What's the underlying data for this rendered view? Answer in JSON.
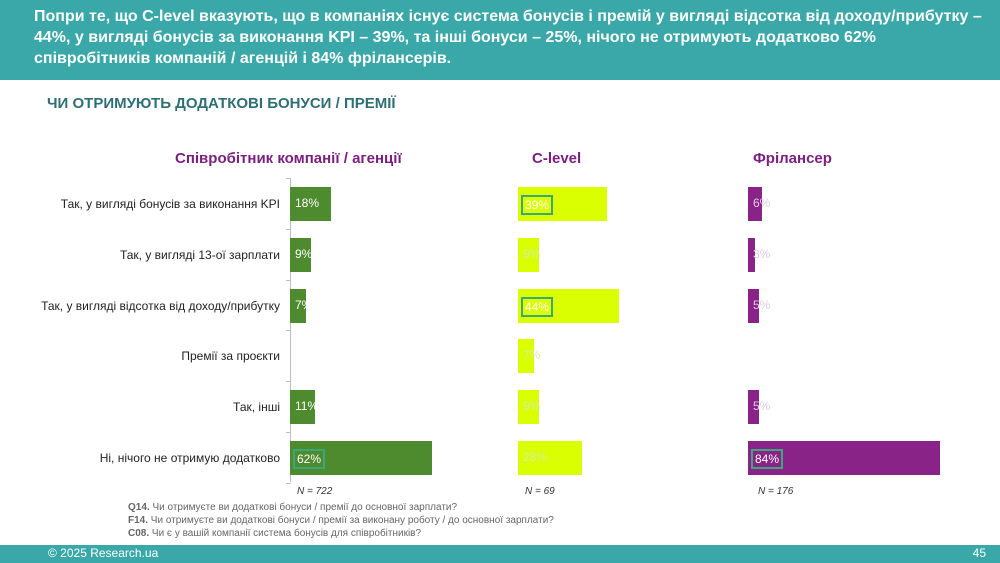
{
  "header": {
    "text": "Попри те, що C-level вказують, що в компаніях існує система бонусів і премій у вигляді відсотка від доходу/прибутку – 44%, у вигляді бонусів за виконання KPI – 39%, та інші бонуси – 25%, нічого не отримують додатково 62% співробітників компаній / агенцій і 84% фрілансерів."
  },
  "section_title": "ЧИ ОТРИМУЮТЬ ДОДАТКОВІ БОНУСИ / ПРЕМІЇ",
  "chart_data": {
    "type": "bar",
    "orientation": "horizontal",
    "categories": [
      "Так, у вигляді бонусів за виконання KPI",
      "Так, у вигляді 13-ої зарплати",
      "Так, у вигляді відсотка від доходу/прибутку",
      "Премії за проєкти",
      "Так, інші",
      "Ні, нічого не отримую додатково"
    ],
    "series": [
      {
        "name": "Співробітник компанії / агенції",
        "values": [
          18,
          9,
          7,
          null,
          11,
          62
        ],
        "labels": [
          "18%",
          "9%",
          "7%",
          "",
          "11%",
          "62%"
        ],
        "highlight": [
          false,
          false,
          false,
          false,
          false,
          true
        ],
        "n": "N = 722",
        "color": "#4e8a2e"
      },
      {
        "name": "C-level",
        "values": [
          39,
          9,
          44,
          7,
          9,
          28
        ],
        "labels": [
          "39%",
          "9%",
          "44%",
          "7%",
          "9%",
          "28%"
        ],
        "highlight": [
          true,
          false,
          true,
          false,
          false,
          false
        ],
        "n": "N = 69",
        "color": "#d9ff00"
      },
      {
        "name": "Фрілансер",
        "values": [
          6,
          3,
          5,
          null,
          5,
          84
        ],
        "labels": [
          "6%",
          "3%",
          "5%",
          "",
          "5%",
          "84%"
        ],
        "highlight": [
          false,
          false,
          false,
          false,
          false,
          true
        ],
        "n": "N =  176",
        "color": "#8a2387"
      }
    ],
    "xlim": [
      0,
      100
    ],
    "unit": "%"
  },
  "notes": [
    {
      "code": "Q14.",
      "text": " Чи отримуєте ви додаткові бонуси / премії до основної зарплати?"
    },
    {
      "code": "F14.",
      "text": " Чи отримуєте ви додаткові бонуси / премії за виконану роботу / до основної зарплати?"
    },
    {
      "code": "C08.",
      "text": " Чи є у вашій компанії система бонусів для співробітників?"
    }
  ],
  "footer": {
    "copyright": "© 2025 Research.ua",
    "page_number": "45"
  }
}
